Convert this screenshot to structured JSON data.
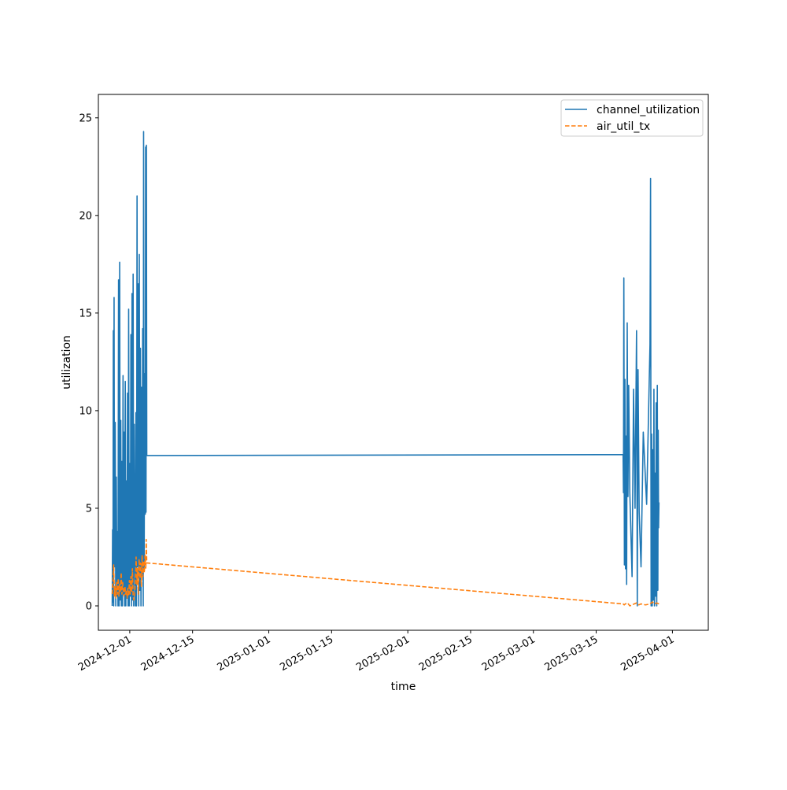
{
  "chart_data": {
    "type": "line",
    "title": "",
    "xlabel": "time",
    "ylabel": "utilization",
    "x_axis_type": "date",
    "xlim": [
      "2024-11-24",
      "2025-04-09"
    ],
    "ylim": [
      -1.25,
      26.2
    ],
    "yticks": [
      0,
      5,
      10,
      15,
      20,
      25
    ],
    "xticks": [
      "2024-12-01",
      "2024-12-15",
      "2025-01-01",
      "2025-01-15",
      "2025-02-01",
      "2025-02-15",
      "2025-03-01",
      "2025-03-15",
      "2025-04-01"
    ],
    "grid": false,
    "legend_position": "top-right",
    "colors": {
      "channel_utilization": "#1f77b4",
      "air_util_tx": "#ff7f0e"
    },
    "series": [
      {
        "name": "channel_utilization",
        "style": "solid",
        "points": [
          [
            "2024-11-27T02:00",
            0
          ],
          [
            "2024-11-27T04:00",
            3.9
          ],
          [
            "2024-11-27T06:00",
            0.2
          ],
          [
            "2024-11-27T08:00",
            14.1
          ],
          [
            "2024-11-27T10:00",
            0
          ],
          [
            "2024-11-27T12:00",
            15.8
          ],
          [
            "2024-11-27T14:00",
            2.0
          ],
          [
            "2024-11-27T18:00",
            9.4
          ],
          [
            "2024-11-27T21:00",
            0
          ],
          [
            "2024-11-28T00:00",
            6.6
          ],
          [
            "2024-11-28T03:00",
            0.5
          ],
          [
            "2024-11-28T06:00",
            3.8
          ],
          [
            "2024-11-28T09:00",
            0
          ],
          [
            "2024-11-28T12:00",
            16.7
          ],
          [
            "2024-11-28T15:00",
            0
          ],
          [
            "2024-11-28T18:00",
            17.6
          ],
          [
            "2024-11-28T21:00",
            0.3
          ],
          [
            "2024-11-29T00:00",
            9.5
          ],
          [
            "2024-11-29T03:00",
            0
          ],
          [
            "2024-11-29T06:00",
            7.4
          ],
          [
            "2024-11-29T09:00",
            0
          ],
          [
            "2024-11-29T12:00",
            11.8
          ],
          [
            "2024-11-29T15:00",
            0.6
          ],
          [
            "2024-11-29T18:00",
            8.9
          ],
          [
            "2024-11-29T21:00",
            0
          ],
          [
            "2024-11-30T00:00",
            11.5
          ],
          [
            "2024-11-30T03:00",
            0
          ],
          [
            "2024-11-30T06:00",
            6.4
          ],
          [
            "2024-11-30T09:00",
            0.4
          ],
          [
            "2024-11-30T12:00",
            10.9
          ],
          [
            "2024-11-30T15:00",
            0
          ],
          [
            "2024-11-30T18:00",
            15.2
          ],
          [
            "2024-11-30T21:00",
            0
          ],
          [
            "2024-12-01T00:00",
            7.3
          ],
          [
            "2024-12-01T03:00",
            0.5
          ],
          [
            "2024-12-01T06:00",
            13.9
          ],
          [
            "2024-12-01T09:00",
            0
          ],
          [
            "2024-12-01T12:00",
            16.0
          ],
          [
            "2024-12-01T15:00",
            0.3
          ],
          [
            "2024-12-01T18:00",
            17.0
          ],
          [
            "2024-12-01T21:00",
            0
          ],
          [
            "2024-12-02T00:00",
            9.3
          ],
          [
            "2024-12-02T03:00",
            3.4
          ],
          [
            "2024-12-02T06:00",
            0
          ],
          [
            "2024-12-02T09:00",
            9.9
          ],
          [
            "2024-12-02T12:00",
            0
          ],
          [
            "2024-12-02T15:00",
            21.0
          ],
          [
            "2024-12-02T18:00",
            2.0
          ],
          [
            "2024-12-02T21:00",
            16.5
          ],
          [
            "2024-12-03T00:00",
            0
          ],
          [
            "2024-12-03T03:00",
            18.0
          ],
          [
            "2024-12-03T06:00",
            0.8
          ],
          [
            "2024-12-03T09:00",
            13.2
          ],
          [
            "2024-12-03T12:00",
            0
          ],
          [
            "2024-12-03T15:00",
            11.2
          ],
          [
            "2024-12-03T18:00",
            1.5
          ],
          [
            "2024-12-03T21:00",
            14.2
          ],
          [
            "2024-12-04T00:00",
            0
          ],
          [
            "2024-12-04T02:00",
            24.3
          ],
          [
            "2024-12-04T05:00",
            1.8
          ],
          [
            "2024-12-04T08:00",
            11.9
          ],
          [
            "2024-12-04T11:00",
            4.7
          ],
          [
            "2024-12-04T13:00",
            23.5
          ],
          [
            "2024-12-04T15:00",
            4.8
          ],
          [
            "2024-12-04T17:00",
            23.6
          ],
          [
            "2024-12-04T19:00",
            7.7
          ],
          [
            "2025-03-21T00:00",
            7.75
          ],
          [
            "2025-03-21T02:00",
            5.8
          ],
          [
            "2025-03-21T04:00",
            16.8
          ],
          [
            "2025-03-21T07:00",
            2.1
          ],
          [
            "2025-03-21T10:00",
            11.6
          ],
          [
            "2025-03-21T13:00",
            1.9
          ],
          [
            "2025-03-21T16:00",
            8.7
          ],
          [
            "2025-03-21T19:00",
            1.1
          ],
          [
            "2025-03-21T22:00",
            14.5
          ],
          [
            "2025-03-22T02:00",
            5.6
          ],
          [
            "2025-03-22T06:00",
            11.3
          ],
          [
            "2025-03-22T12:00",
            5.8
          ],
          [
            "2025-03-23T00:00",
            1.5
          ],
          [
            "2025-03-23T08:00",
            11.1
          ],
          [
            "2025-03-23T16:00",
            5.0
          ],
          [
            "2025-03-24T00:00",
            14.1
          ],
          [
            "2025-03-24T04:00",
            0
          ],
          [
            "2025-03-24T08:00",
            12.1
          ],
          [
            "2025-03-24T14:00",
            4.8
          ],
          [
            "2025-03-25T00:00",
            2.0
          ],
          [
            "2025-03-25T12:00",
            8.9
          ],
          [
            "2025-03-26T06:00",
            5.2
          ],
          [
            "2025-03-27T00:00",
            13.4
          ],
          [
            "2025-03-27T03:00",
            21.9
          ],
          [
            "2025-03-27T06:00",
            0
          ],
          [
            "2025-03-27T09:00",
            8.8
          ],
          [
            "2025-03-27T12:00",
            0
          ],
          [
            "2025-03-27T15:00",
            8.0
          ],
          [
            "2025-03-27T18:00",
            0.3
          ],
          [
            "2025-03-27T21:00",
            11.1
          ],
          [
            "2025-03-28T00:00",
            0
          ],
          [
            "2025-03-28T03:00",
            6.8
          ],
          [
            "2025-03-28T06:00",
            0.5
          ],
          [
            "2025-03-28T09:00",
            10.4
          ],
          [
            "2025-03-28T12:00",
            0
          ],
          [
            "2025-03-28T15:00",
            11.3
          ],
          [
            "2025-03-28T18:00",
            0.8
          ],
          [
            "2025-03-28T20:00",
            9.0
          ],
          [
            "2025-03-28T22:00",
            4.0
          ],
          [
            "2025-03-29T00:00",
            5.3
          ]
        ]
      },
      {
        "name": "air_util_tx",
        "style": "dashed",
        "points": [
          [
            "2024-11-27T02:00",
            0.6
          ],
          [
            "2024-11-27T06:00",
            1.3
          ],
          [
            "2024-11-27T10:00",
            2.1
          ],
          [
            "2024-11-27T14:00",
            0.5
          ],
          [
            "2024-11-27T18:00",
            1.0
          ],
          [
            "2024-11-27T22:00",
            0.4
          ],
          [
            "2024-11-28T02:00",
            1.2
          ],
          [
            "2024-11-28T06:00",
            0.6
          ],
          [
            "2024-11-28T10:00",
            1.4
          ],
          [
            "2024-11-28T14:00",
            0.5
          ],
          [
            "2024-11-28T18:00",
            1.1
          ],
          [
            "2024-11-28T22:00",
            0.7
          ],
          [
            "2024-11-29T02:00",
            1.7
          ],
          [
            "2024-11-29T06:00",
            0.6
          ],
          [
            "2024-11-29T10:00",
            1.2
          ],
          [
            "2024-11-29T14:00",
            0.8
          ],
          [
            "2024-11-29T18:00",
            0.5
          ],
          [
            "2024-11-29T22:00",
            1.0
          ],
          [
            "2024-11-30T02:00",
            0.6
          ],
          [
            "2024-11-30T06:00",
            0.8
          ],
          [
            "2024-11-30T10:00",
            0.4
          ],
          [
            "2024-11-30T14:00",
            0.9
          ],
          [
            "2024-11-30T18:00",
            0.5
          ],
          [
            "2024-11-30T22:00",
            1.3
          ],
          [
            "2024-12-01T02:00",
            0.6
          ],
          [
            "2024-12-01T06:00",
            1.5
          ],
          [
            "2024-12-01T10:00",
            0.7
          ],
          [
            "2024-12-01T14:00",
            1.9
          ],
          [
            "2024-12-01T18:00",
            0.5
          ],
          [
            "2024-12-01T22:00",
            0.3
          ],
          [
            "2024-12-02T02:00",
            0.6
          ],
          [
            "2024-12-02T06:00",
            1.2
          ],
          [
            "2024-12-02T10:00",
            2.5
          ],
          [
            "2024-12-02T14:00",
            1.1
          ],
          [
            "2024-12-02T18:00",
            1.9
          ],
          [
            "2024-12-02T22:00",
            0.6
          ],
          [
            "2024-12-03T02:00",
            2.4
          ],
          [
            "2024-12-03T06:00",
            1.4
          ],
          [
            "2024-12-03T10:00",
            2.2
          ],
          [
            "2024-12-03T14:00",
            1.0
          ],
          [
            "2024-12-03T18:00",
            2.6
          ],
          [
            "2024-12-03T22:00",
            1.5
          ],
          [
            "2024-12-04T02:00",
            2.3
          ],
          [
            "2024-12-04T06:00",
            1.7
          ],
          [
            "2024-12-04T10:00",
            2.6
          ],
          [
            "2024-12-04T14:00",
            1.9
          ],
          [
            "2024-12-04T16:00",
            3.4
          ],
          [
            "2024-12-04T19:00",
            2.2
          ],
          [
            "2025-03-21T00:00",
            0.1
          ],
          [
            "2025-03-21T06:00",
            0.05
          ],
          [
            "2025-03-21T12:00",
            0.1
          ],
          [
            "2025-03-22T00:00",
            0.15
          ],
          [
            "2025-03-22T12:00",
            0.0
          ],
          [
            "2025-03-23T00:00",
            0.05
          ],
          [
            "2025-03-23T12:00",
            0.1
          ],
          [
            "2025-03-24T00:00",
            0.15
          ],
          [
            "2025-03-24T12:00",
            0.05
          ],
          [
            "2025-03-25T00:00",
            0.1
          ],
          [
            "2025-03-26T00:00",
            0.05
          ],
          [
            "2025-03-27T00:00",
            0.1
          ],
          [
            "2025-03-27T12:00",
            0.2
          ],
          [
            "2025-03-28T00:00",
            0.1
          ],
          [
            "2025-03-28T12:00",
            0.15
          ],
          [
            "2025-03-29T00:00",
            0.1
          ]
        ]
      }
    ]
  }
}
